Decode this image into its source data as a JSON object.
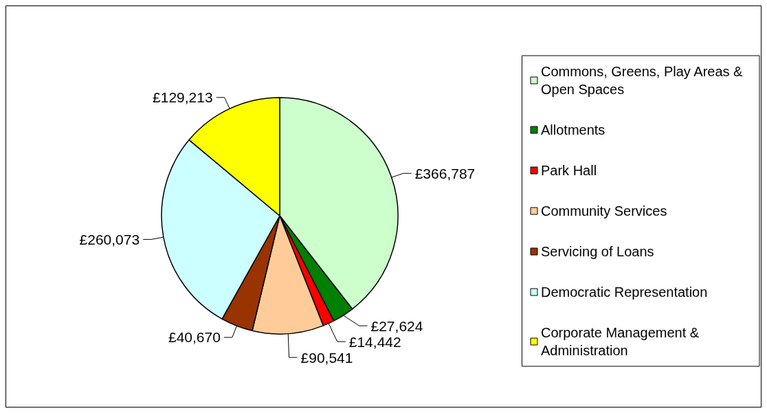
{
  "chart_data": {
    "type": "pie",
    "categories": [
      "Commons, Greens, Play Areas & Open Spaces",
      "Allotments",
      "Park Hall",
      "Community Services",
      "Servicing of Loans",
      "Democratic Representation",
      "Corporate Management & Administration"
    ],
    "values": [
      366787,
      27624,
      14442,
      90541,
      40670,
      260073,
      129213
    ],
    "value_labels": [
      "£366,787",
      "£27,624",
      "£14,442",
      "£90,541",
      "£40,670",
      "£260,073",
      "£129,213"
    ],
    "colors": [
      "#ccffcc",
      "#008000",
      "#ff0000",
      "#ffcc99",
      "#993300",
      "#ccffff",
      "#ffff00"
    ],
    "legend": "right"
  }
}
